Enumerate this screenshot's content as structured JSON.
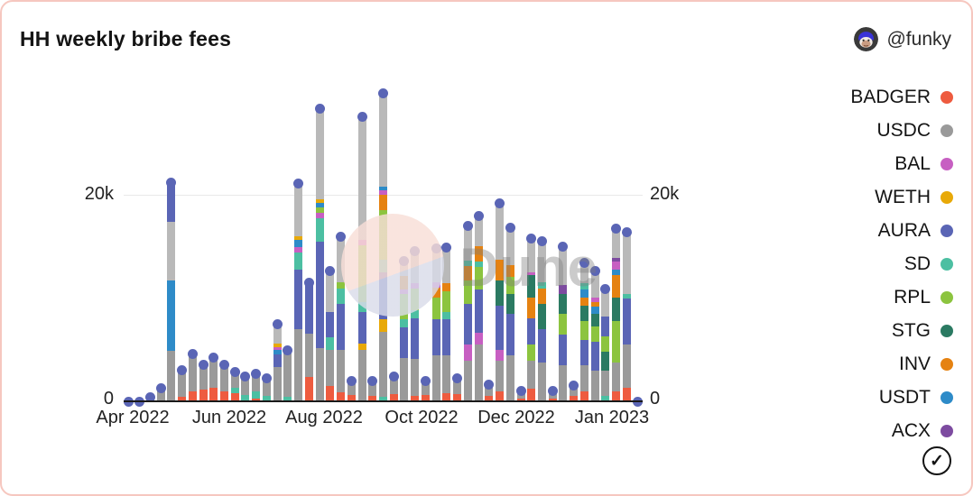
{
  "card": {
    "title": "HH weekly bribe fees",
    "author": "@funky",
    "border_color": "#f6c7bf"
  },
  "watermark": {
    "text": "Dune",
    "circle_top_color": "#f8ded7",
    "circle_bottom_color": "#d9dbe9"
  },
  "legend": {
    "items": [
      {
        "label": "BADGER",
        "color": "#ee5b3f"
      },
      {
        "label": "USDC",
        "color": "#9a9a9a"
      },
      {
        "label": "BAL",
        "color": "#c75fc2"
      },
      {
        "label": "WETH",
        "color": "#e8a908"
      },
      {
        "label": "AURA",
        "color": "#5a65b5"
      },
      {
        "label": "SD",
        "color": "#4cbfa2"
      },
      {
        "label": "RPL",
        "color": "#8cc43f"
      },
      {
        "label": "STG",
        "color": "#2b7a62"
      },
      {
        "label": "INV",
        "color": "#e58211"
      },
      {
        "label": "USDT",
        "color": "#2e8bc8"
      },
      {
        "label": "ACX",
        "color": "#7d4ba0"
      }
    ],
    "check_glyph": "✓"
  },
  "chart_data": {
    "type": "bar",
    "stacked": true,
    "overlay": "scatter dot at each weekly total",
    "title": "HH weekly bribe fees",
    "xlabel": "",
    "ylabel": "",
    "value_unit": "thousands (k)",
    "ylim": [
      0,
      31200
    ],
    "grid": "single horizontal gridline at 20k",
    "legend_position": "right",
    "y_ticks": [
      {
        "value": 0,
        "label": "0"
      },
      {
        "value": 20000,
        "label": "20k"
      }
    ],
    "x_ticks": [
      "Apr 2022",
      "Jun 2022",
      "Aug 2022",
      "Oct 2022",
      "Dec 2022",
      "Jan 2023"
    ],
    "dot_color": "#5a65b5",
    "series_colors": {
      "BADGER": "#ee5b3f",
      "USDC": "#9a9a9a",
      "BAL": "#c75fc2",
      "WETH": "#e8a908",
      "AURA": "#5a65b5",
      "SD": "#4cbfa2",
      "RPL": "#8cc43f",
      "STG": "#2b7a62",
      "INV": "#e58211",
      "USDT": "#2e8bc8",
      "ACX": "#7d4ba0",
      "USDC2": "#b9b9b9"
    },
    "bars": [
      {
        "t": 0,
        "s": []
      },
      {
        "t": 0,
        "s": []
      },
      {
        "t": 0.4,
        "s": [
          [
            "USDC",
            0.4
          ]
        ]
      },
      {
        "t": 1.3,
        "s": [
          [
            "USDC",
            1.3
          ]
        ]
      },
      {
        "t": 21.3,
        "s": [
          [
            "USDC",
            4.9
          ],
          [
            "USDT",
            6.9
          ],
          [
            "USDC2",
            5.7
          ],
          [
            "AURA",
            3.8
          ]
        ]
      },
      {
        "t": 3.0,
        "s": [
          [
            "BADGER",
            0.4
          ],
          [
            "USDC",
            2.6
          ]
        ]
      },
      {
        "t": 4.6,
        "s": [
          [
            "BADGER",
            1.0
          ],
          [
            "USDC",
            3.3
          ],
          [
            "WETH",
            0.3
          ]
        ]
      },
      {
        "t": 3.6,
        "s": [
          [
            "BADGER",
            1.1
          ],
          [
            "USDC",
            2.5
          ]
        ]
      },
      {
        "t": 4.3,
        "s": [
          [
            "BADGER",
            1.3
          ],
          [
            "USDC",
            2.8
          ],
          [
            "INV",
            0.2
          ]
        ]
      },
      {
        "t": 3.6,
        "s": [
          [
            "BADGER",
            1.0
          ],
          [
            "USDC",
            2.6
          ]
        ]
      },
      {
        "t": 2.9,
        "s": [
          [
            "BADGER",
            0.8
          ],
          [
            "SD",
            0.5
          ],
          [
            "USDC",
            1.6
          ]
        ]
      },
      {
        "t": 2.4,
        "s": [
          [
            "SD",
            0.6
          ],
          [
            "USDC",
            1.8
          ]
        ]
      },
      {
        "t": 2.7,
        "s": [
          [
            "BADGER",
            0.3
          ],
          [
            "SD",
            0.7
          ],
          [
            "USDC",
            1.7
          ]
        ]
      },
      {
        "t": 2.2,
        "s": [
          [
            "SD",
            0.5
          ],
          [
            "USDC",
            1.7
          ]
        ]
      },
      {
        "t": 7.5,
        "s": [
          [
            "USDC",
            3.3
          ],
          [
            "AURA",
            1.3
          ],
          [
            "USDT",
            0.4
          ],
          [
            "BAL",
            0.3
          ],
          [
            "WETH",
            0.3
          ],
          [
            "USDC2",
            1.9
          ]
        ]
      },
      {
        "t": 5.0,
        "s": [
          [
            "SD",
            0.4
          ],
          [
            "USDC",
            4.6
          ]
        ]
      },
      {
        "t": 21.2,
        "s": [
          [
            "USDC",
            7.0
          ],
          [
            "AURA",
            5.8
          ],
          [
            "SD",
            1.7
          ],
          [
            "BAL",
            0.5
          ],
          [
            "USDT",
            0.7
          ],
          [
            "WETH",
            0.4
          ],
          [
            "USDC2",
            5.1
          ]
        ]
      },
      {
        "t": 11.6,
        "s": [
          [
            "BADGER",
            2.4
          ],
          [
            "USDC",
            4.2
          ],
          [
            "AURA",
            5.0
          ]
        ]
      },
      {
        "t": 28.5,
        "s": [
          [
            "USDC",
            5.2
          ],
          [
            "AURA",
            10.4
          ],
          [
            "SD",
            2.2
          ],
          [
            "BAL",
            0.6
          ],
          [
            "RPL",
            0.5
          ],
          [
            "USDT",
            0.4
          ],
          [
            "WETH",
            0.4
          ],
          [
            "USDC2",
            8.8
          ]
        ]
      },
      {
        "t": 12.7,
        "s": [
          [
            "BADGER",
            1.5
          ],
          [
            "USDC",
            3.5
          ],
          [
            "SD",
            1.2
          ],
          [
            "AURA",
            2.5
          ],
          [
            "USDC2",
            4.0
          ]
        ]
      },
      {
        "t": 16.0,
        "s": [
          [
            "BADGER",
            0.9
          ],
          [
            "USDC",
            4.1
          ],
          [
            "AURA",
            4.5
          ],
          [
            "SD",
            1.5
          ],
          [
            "RPL",
            0.6
          ],
          [
            "USDC2",
            4.4
          ]
        ]
      },
      {
        "t": 2.0,
        "s": [
          [
            "BADGER",
            0.6
          ],
          [
            "USDC",
            1.4
          ]
        ]
      },
      {
        "t": 27.7,
        "s": [
          [
            "USDC",
            5.0
          ],
          [
            "WETH",
            0.6
          ],
          [
            "AURA",
            3.1
          ],
          [
            "SD",
            1.0
          ],
          [
            "RPL",
            5.5
          ],
          [
            "BAL",
            0.5
          ],
          [
            "USDC2",
            12.0
          ]
        ]
      },
      {
        "t": 2.0,
        "s": [
          [
            "BADGER",
            0.5
          ],
          [
            "USDC",
            1.5
          ]
        ]
      },
      {
        "t": 30.0,
        "s": [
          [
            "SD",
            0.4
          ],
          [
            "USDC",
            6.4
          ],
          [
            "WETH",
            1.2
          ],
          [
            "AURA",
            4.6
          ],
          [
            "SD",
            1.2
          ],
          [
            "RPL",
            4.8
          ],
          [
            "INV",
            1.5
          ],
          [
            "BAL",
            0.5
          ],
          [
            "USDT",
            0.3
          ],
          [
            "USDC2",
            9.1
          ]
        ]
      },
      {
        "t": 2.4,
        "s": [
          [
            "BADGER",
            0.7
          ],
          [
            "USDC",
            1.7
          ]
        ]
      },
      {
        "t": 13.7,
        "s": [
          [
            "USDC",
            4.2
          ],
          [
            "AURA",
            3.0
          ],
          [
            "SD",
            0.8
          ],
          [
            "RPL",
            2.5
          ],
          [
            "BAL",
            0.4
          ],
          [
            "INV",
            1.3
          ],
          [
            "USDC2",
            1.5
          ]
        ]
      },
      {
        "t": 14.6,
        "s": [
          [
            "BADGER",
            0.5
          ],
          [
            "USDC",
            3.6
          ],
          [
            "AURA",
            4.0
          ],
          [
            "SD",
            0.8
          ],
          [
            "RPL",
            2.1
          ],
          [
            "BAL",
            0.5
          ],
          [
            "USDC2",
            3.1
          ]
        ]
      },
      {
        "t": 2.0,
        "s": [
          [
            "BADGER",
            0.6
          ],
          [
            "USDC",
            1.4
          ]
        ]
      },
      {
        "t": 14.9,
        "s": [
          [
            "USDC",
            4.5
          ],
          [
            "AURA",
            3.5
          ],
          [
            "RPL",
            2.1
          ],
          [
            "INV",
            1.0
          ],
          [
            "BAL",
            0.5
          ],
          [
            "USDC2",
            3.3
          ]
        ]
      },
      {
        "t": 15.0,
        "s": [
          [
            "BADGER",
            0.8
          ],
          [
            "USDC",
            3.7
          ],
          [
            "AURA",
            3.5
          ],
          [
            "SD",
            0.7
          ],
          [
            "RPL",
            2.0
          ],
          [
            "INV",
            0.8
          ],
          [
            "USDC2",
            3.5
          ]
        ]
      },
      {
        "t": 2.2,
        "s": [
          [
            "BADGER",
            0.7
          ],
          [
            "USDC",
            1.5
          ]
        ]
      },
      {
        "t": 17.1,
        "s": [
          [
            "USDC",
            4.0
          ],
          [
            "BAL",
            1.5
          ],
          [
            "AURA",
            4.0
          ],
          [
            "RPL",
            2.3
          ],
          [
            "INV",
            1.4
          ],
          [
            "SD",
            0.5
          ],
          [
            "USDC2",
            3.4
          ]
        ]
      },
      {
        "t": 18.1,
        "s": [
          [
            "USDC",
            5.5
          ],
          [
            "BAL",
            1.2
          ],
          [
            "AURA",
            4.2
          ],
          [
            "RPL",
            2.2
          ],
          [
            "SD",
            0.5
          ],
          [
            "INV",
            1.5
          ],
          [
            "USDC2",
            3.0
          ]
        ]
      },
      {
        "t": 1.6,
        "s": [
          [
            "BADGER",
            0.5
          ],
          [
            "USDC",
            1.1
          ]
        ]
      },
      {
        "t": 19.3,
        "s": [
          [
            "BADGER",
            1.0
          ],
          [
            "USDC",
            3.0
          ],
          [
            "BAL",
            1.0
          ],
          [
            "AURA",
            4.3
          ],
          [
            "STG",
            2.5
          ],
          [
            "INV",
            2.0
          ],
          [
            "USDC2",
            5.5
          ]
        ]
      },
      {
        "t": 16.9,
        "s": [
          [
            "USDC",
            4.5
          ],
          [
            "AURA",
            4.0
          ],
          [
            "STG",
            2.0
          ],
          [
            "RPL",
            1.6
          ],
          [
            "INV",
            1.2
          ],
          [
            "USDC2",
            3.6
          ]
        ]
      },
      {
        "t": 1.0,
        "s": [
          [
            "BADGER",
            0.3
          ],
          [
            "USDC",
            0.7
          ]
        ]
      },
      {
        "t": 15.9,
        "s": [
          [
            "BADGER",
            1.2
          ],
          [
            "USDC",
            2.8
          ],
          [
            "RPL",
            1.5
          ],
          [
            "AURA",
            2.6
          ],
          [
            "INV",
            2.0
          ],
          [
            "STG",
            2.2
          ],
          [
            "BAL",
            0.3
          ],
          [
            "USDC2",
            3.3
          ]
        ]
      },
      {
        "t": 15.6,
        "s": [
          [
            "USDC",
            3.8
          ],
          [
            "AURA",
            3.2
          ],
          [
            "STG",
            2.5
          ],
          [
            "INV",
            1.5
          ],
          [
            "SD",
            0.6
          ],
          [
            "USDC2",
            4.0
          ]
        ]
      },
      {
        "t": 1.0,
        "s": [
          [
            "BADGER",
            0.3
          ],
          [
            "USDC",
            0.7
          ]
        ]
      },
      {
        "t": 15.1,
        "s": [
          [
            "USDC",
            3.5
          ],
          [
            "AURA",
            3.0
          ],
          [
            "RPL",
            2.0
          ],
          [
            "STG",
            2.0
          ],
          [
            "ACX",
            0.8
          ],
          [
            "USDC2",
            3.8
          ]
        ]
      },
      {
        "t": 1.5,
        "s": [
          [
            "BADGER",
            0.5
          ],
          [
            "USDC",
            1.0
          ]
        ]
      },
      {
        "t": 13.5,
        "s": [
          [
            "BADGER",
            1.0
          ],
          [
            "USDC",
            2.5
          ],
          [
            "AURA",
            2.5
          ],
          [
            "RPL",
            1.8
          ],
          [
            "STG",
            1.5
          ],
          [
            "INV",
            0.8
          ],
          [
            "USDT",
            0.8
          ],
          [
            "SD",
            0.6
          ],
          [
            "USDC2",
            2.0
          ]
        ]
      },
      {
        "t": 12.7,
        "s": [
          [
            "USDC",
            3.0
          ],
          [
            "AURA",
            2.8
          ],
          [
            "RPL",
            1.5
          ],
          [
            "STG",
            1.2
          ],
          [
            "USDT",
            0.7
          ],
          [
            "INV",
            0.5
          ],
          [
            "BAL",
            0.4
          ],
          [
            "USDC2",
            2.6
          ]
        ]
      },
      {
        "t": 10.9,
        "s": [
          [
            "SD",
            0.5
          ],
          [
            "USDC",
            2.5
          ],
          [
            "STG",
            1.8
          ],
          [
            "RPL",
            1.5
          ],
          [
            "AURA",
            2.0
          ],
          [
            "USDC2",
            2.6
          ]
        ]
      },
      {
        "t": 16.8,
        "s": [
          [
            "BADGER",
            1.0
          ],
          [
            "USDC",
            2.8
          ],
          [
            "RPL",
            4.0
          ],
          [
            "STG",
            2.3
          ],
          [
            "INV",
            2.2
          ],
          [
            "USDT",
            0.5
          ],
          [
            "BAL",
            0.8
          ],
          [
            "ACX",
            0.4
          ],
          [
            "USDC2",
            2.8
          ]
        ]
      },
      {
        "t": 16.5,
        "s": [
          [
            "BADGER",
            1.3
          ],
          [
            "USDC",
            4.2
          ],
          [
            "AURA",
            4.5
          ],
          [
            "SD",
            0.5
          ],
          [
            "USDC2",
            6.0
          ]
        ]
      },
      {
        "t": 0,
        "s": []
      }
    ]
  }
}
